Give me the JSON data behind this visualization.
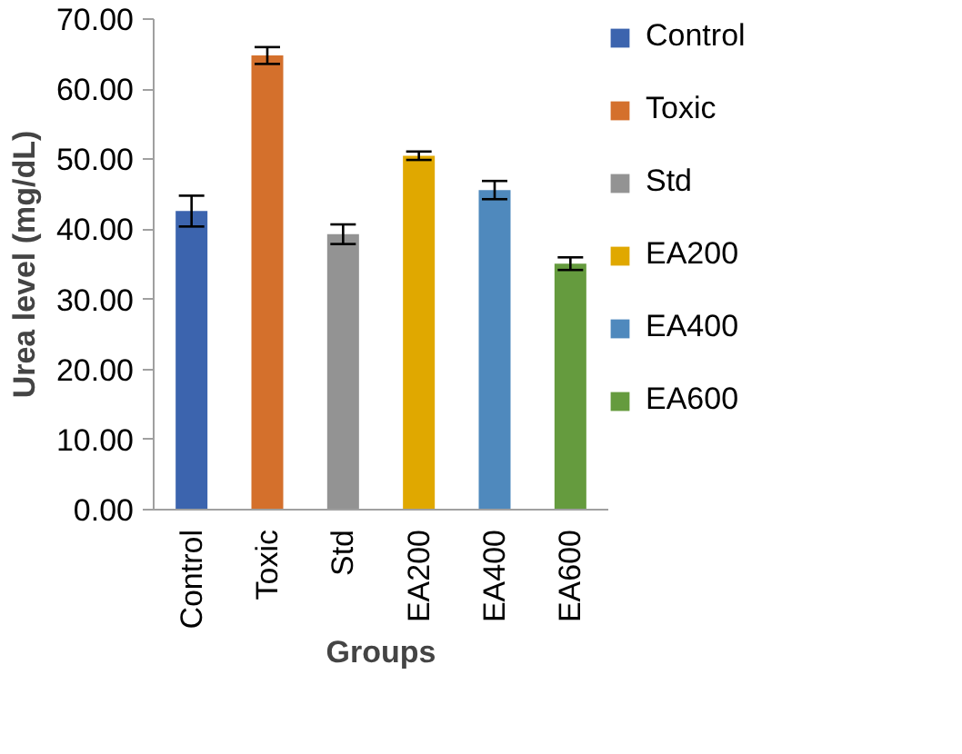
{
  "chart_data": {
    "type": "bar",
    "xlabel": "Groups",
    "ylabel": "Urea level (mg/dL)",
    "categories": [
      "Control",
      "Toxic",
      "Std",
      "EA200",
      "EA400",
      "EA600"
    ],
    "series": [
      {
        "name": "Control",
        "color": "#3c64ae",
        "values": [
          42.6,
          null,
          null,
          null,
          null,
          null
        ],
        "errors": [
          2.2,
          null,
          null,
          null,
          null,
          null
        ]
      },
      {
        "name": "Toxic",
        "color": "#d4702c",
        "values": [
          null,
          64.8,
          null,
          null,
          null,
          null
        ],
        "errors": [
          null,
          1.2,
          null,
          null,
          null,
          null
        ]
      },
      {
        "name": "Std",
        "color": "#939393",
        "values": [
          null,
          null,
          39.3,
          null,
          null,
          null
        ],
        "errors": [
          null,
          null,
          1.4,
          null,
          null,
          null
        ]
      },
      {
        "name": "EA200",
        "color": "#e0a800",
        "values": [
          null,
          null,
          null,
          50.5,
          null,
          null
        ],
        "errors": [
          null,
          null,
          null,
          0.6,
          null,
          null
        ]
      },
      {
        "name": "EA400",
        "color": "#4f89bd",
        "values": [
          null,
          null,
          null,
          null,
          45.6,
          null
        ],
        "errors": [
          null,
          null,
          null,
          null,
          1.3,
          null
        ]
      },
      {
        "name": "EA600",
        "color": "#659b3e",
        "values": [
          null,
          null,
          null,
          null,
          null,
          35.1
        ],
        "errors": [
          null,
          null,
          null,
          null,
          null,
          0.9
        ]
      }
    ],
    "ylim": [
      0,
      70
    ],
    "yticks": [
      {
        "value": 0,
        "label": "0.00"
      },
      {
        "value": 10,
        "label": "10.00"
      },
      {
        "value": 20,
        "label": "20.00"
      },
      {
        "value": 30,
        "label": "30.00"
      },
      {
        "value": 40,
        "label": "40.00"
      },
      {
        "value": 50,
        "label": "50.00"
      },
      {
        "value": 60,
        "label": "60.00"
      },
      {
        "value": 70,
        "label": "70.00"
      }
    ],
    "legend": "right"
  }
}
